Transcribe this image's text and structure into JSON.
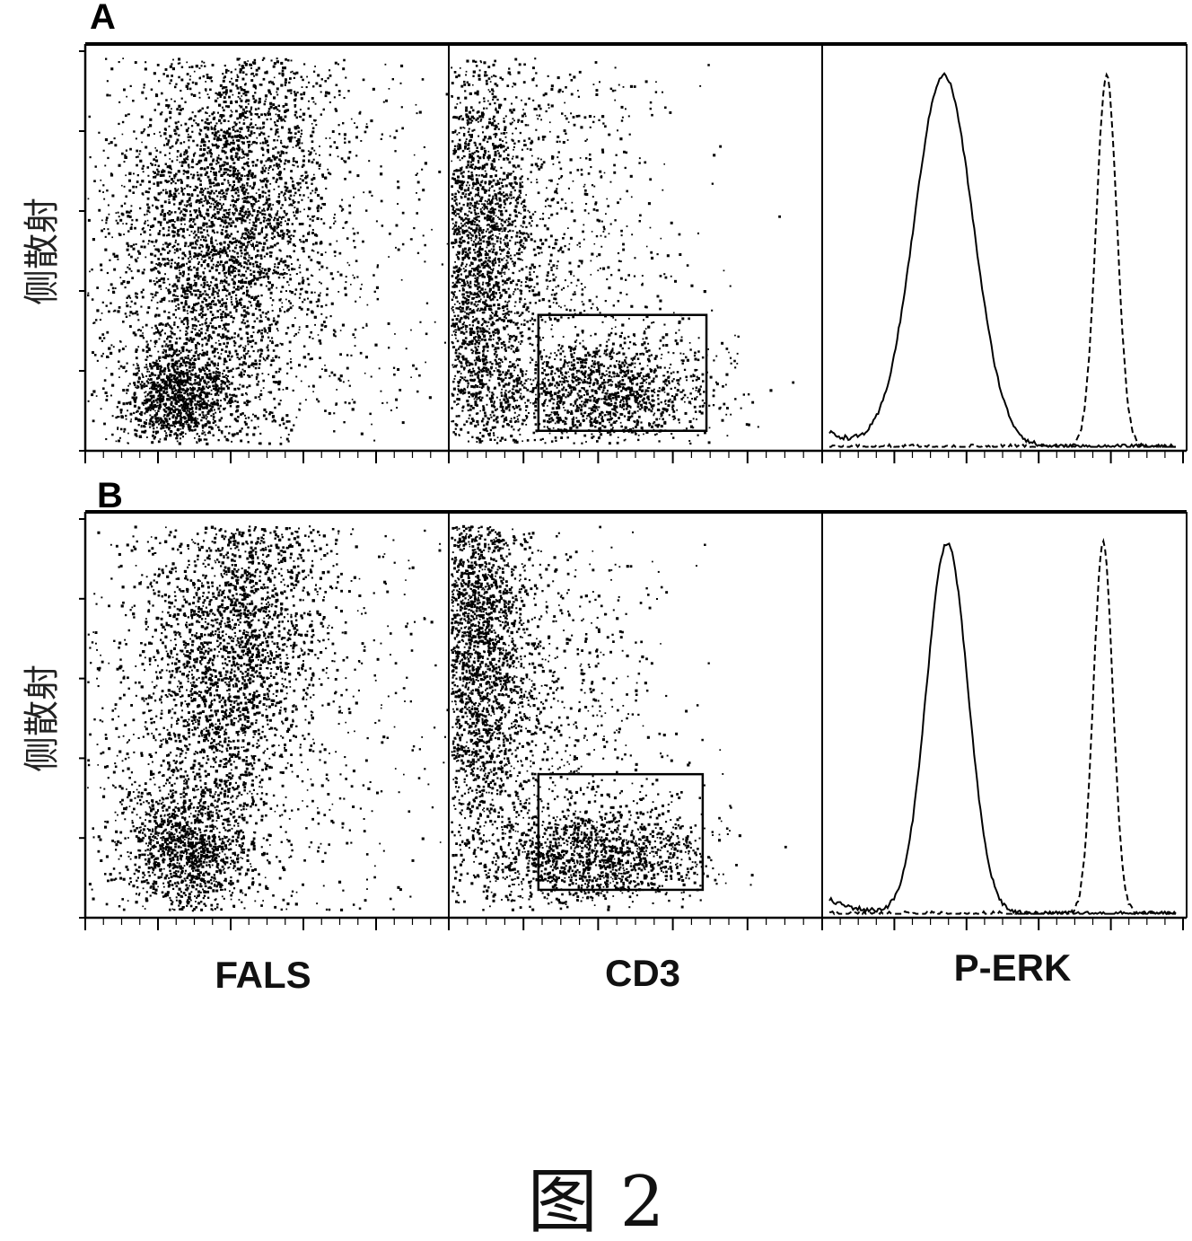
{
  "figure": {
    "caption": "图 2"
  },
  "colors": {
    "ink": "#000000",
    "background": "#ffffff"
  },
  "chart_data": [
    {
      "panel": "A",
      "plots": [
        {
          "type": "scatter",
          "xlabel": "",
          "ylabel": "侧散射",
          "populations": [
            {
              "cx": 0.38,
              "cy": 0.57,
              "sx": 0.13,
              "sy": 0.28,
              "rot": -12,
              "count": 4800
            },
            {
              "cx": 0.26,
              "cy": 0.14,
              "sx": 0.07,
              "sy": 0.06,
              "rot": 0,
              "count": 1000
            },
            {
              "cx": 0.4,
              "cy": 0.45,
              "sx": 0.3,
              "sy": 0.42,
              "rot": 0,
              "count": 1600
            }
          ]
        },
        {
          "type": "scatter",
          "xlabel": "CD3",
          "ylabel": "",
          "gate": {
            "x0": 0.24,
            "x1": 0.69,
            "y0": 0.05,
            "y1": 0.34
          },
          "populations": [
            {
              "cx": 0.07,
              "cy": 0.45,
              "sx": 0.07,
              "sy": 0.28,
              "count": 2300
            },
            {
              "cx": 0.42,
              "cy": 0.15,
              "sx": 0.14,
              "sy": 0.07,
              "count": 1300
            },
            {
              "cx": 0.17,
              "cy": 0.48,
              "sx": 0.2,
              "sy": 0.32,
              "count": 1600
            }
          ]
        },
        {
          "type": "line",
          "xlabel": "",
          "series": [
            {
              "style": "solid",
              "mode": 0.33,
              "width": 0.085
            },
            {
              "style": "dashed",
              "mode": 0.8,
              "width": 0.03
            }
          ]
        }
      ]
    },
    {
      "panel": "B",
      "plots": [
        {
          "type": "scatter",
          "xlabel": "FALS",
          "ylabel": "侧散射",
          "populations": [
            {
              "cx": 0.4,
              "cy": 0.66,
              "sx": 0.11,
              "sy": 0.26,
              "rot": -14,
              "count": 4600
            },
            {
              "cx": 0.28,
              "cy": 0.17,
              "sx": 0.08,
              "sy": 0.08,
              "rot": 0,
              "count": 1100
            },
            {
              "cx": 0.38,
              "cy": 0.5,
              "sx": 0.3,
              "sy": 0.4,
              "rot": 0,
              "count": 1700
            }
          ]
        },
        {
          "type": "scatter",
          "xlabel": "CD3",
          "ylabel": "",
          "gate": {
            "x0": 0.24,
            "x1": 0.68,
            "y0": 0.07,
            "y1": 0.36
          },
          "populations": [
            {
              "cx": 0.07,
              "cy": 0.68,
              "sx": 0.07,
              "sy": 0.24,
              "count": 2400
            },
            {
              "cx": 0.4,
              "cy": 0.16,
              "sx": 0.14,
              "sy": 0.06,
              "count": 1300
            },
            {
              "cx": 0.16,
              "cy": 0.45,
              "sx": 0.2,
              "sy": 0.32,
              "count": 1600
            }
          ]
        },
        {
          "type": "line",
          "xlabel": "P-ERK",
          "series": [
            {
              "style": "solid",
              "mode": 0.34,
              "width": 0.06
            },
            {
              "style": "dashed",
              "mode": 0.79,
              "width": 0.028
            }
          ]
        }
      ]
    }
  ]
}
